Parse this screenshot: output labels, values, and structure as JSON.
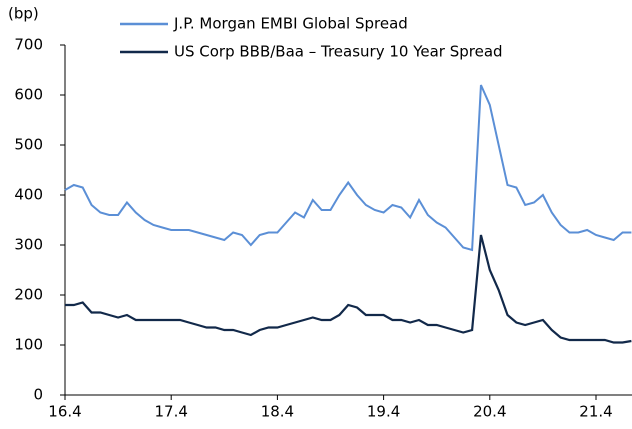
{
  "chart_data": {
    "type": "line",
    "y_label": "(bp)",
    "x": [
      "16.4",
      null,
      null,
      null,
      null,
      null,
      null,
      null,
      null,
      null,
      null,
      null,
      "17.4",
      null,
      null,
      null,
      null,
      null,
      null,
      null,
      null,
      null,
      null,
      null,
      "18.4",
      null,
      null,
      null,
      null,
      null,
      null,
      null,
      null,
      null,
      null,
      null,
      "19.4",
      null,
      null,
      null,
      null,
      null,
      null,
      null,
      null,
      null,
      null,
      null,
      "20.4",
      null,
      null,
      null,
      null,
      null,
      null,
      null,
      null,
      null,
      null,
      null,
      "21.4",
      null,
      null,
      null,
      null
    ],
    "series": [
      {
        "name": "J.P. Morgan EMBI Global Spread",
        "color": "#5b8fd6",
        "values": [
          410,
          420,
          415,
          380,
          365,
          360,
          360,
          385,
          365,
          350,
          340,
          335,
          330,
          330,
          330,
          325,
          320,
          315,
          310,
          325,
          320,
          300,
          320,
          325,
          325,
          345,
          365,
          355,
          390,
          370,
          370,
          400,
          425,
          400,
          380,
          370,
          365,
          380,
          375,
          355,
          390,
          360,
          345,
          335,
          315,
          295,
          290,
          620,
          580,
          500,
          420,
          415,
          380,
          385,
          400,
          365,
          340,
          325,
          325,
          330,
          320,
          315,
          310,
          325,
          325
        ]
      },
      {
        "name": "US Corp BBB/Baa – Treasury 10 Year Spread",
        "color": "#12294a",
        "values": [
          180,
          180,
          185,
          165,
          165,
          160,
          155,
          160,
          150,
          150,
          150,
          150,
          150,
          150,
          145,
          140,
          135,
          135,
          130,
          130,
          125,
          120,
          130,
          135,
          135,
          140,
          145,
          150,
          155,
          150,
          150,
          160,
          180,
          175,
          160,
          160,
          160,
          150,
          150,
          145,
          150,
          140,
          140,
          135,
          130,
          125,
          130,
          320,
          250,
          210,
          160,
          145,
          140,
          145,
          150,
          130,
          115,
          110,
          110,
          110,
          110,
          110,
          105,
          105,
          108
        ]
      }
    ],
    "ylim": [
      0,
      700
    ],
    "yticks": [
      0,
      100,
      200,
      300,
      400,
      500,
      600,
      700
    ],
    "grid": false
  }
}
